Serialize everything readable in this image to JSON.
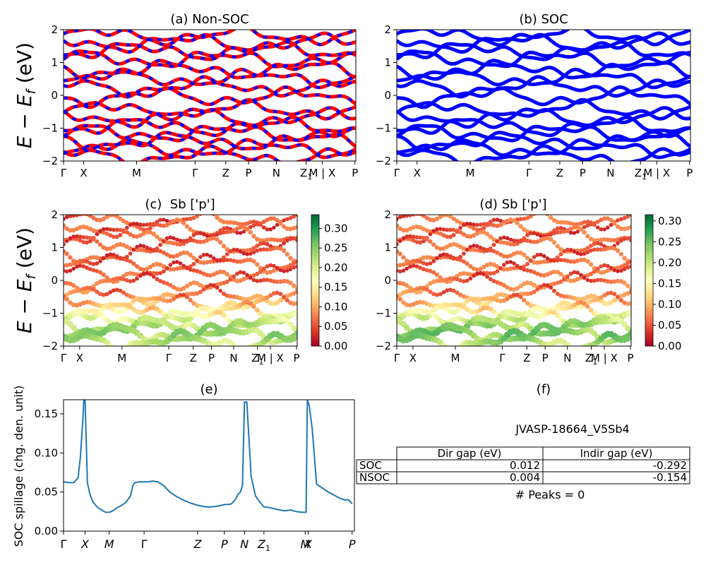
{
  "figure": {
    "ylabel_band": "E − E_f (eV)",
    "colors": {
      "nonsoc_primary": "#ff0000",
      "nonsoc_secondary": "#0000ff",
      "soc": "#0000ff",
      "spillage_line": "#1f77b4"
    },
    "colormap": "RdYlGn"
  },
  "chart_data": [
    {
      "id": "a",
      "type": "line",
      "title": "(a) Non-SOC",
      "ylabel": "E − E_f (eV)",
      "ylim": [
        -2,
        2
      ],
      "yticks": [
        -2,
        -1,
        0,
        1,
        2
      ],
      "kpath": [
        "Γ",
        "X",
        "M",
        "Γ",
        "Z",
        "P",
        "N",
        "Z1",
        "M | X",
        "P"
      ],
      "kpos": [
        0,
        0.069,
        0.25,
        0.45,
        0.555,
        0.633,
        0.728,
        0.83,
        0.885,
        0.997
      ],
      "bands": [
        1.82,
        1.6,
        1.35,
        1.1,
        0.78,
        0.52,
        0.25,
        -0.05,
        -0.45,
        -0.68,
        -0.95,
        -1.15,
        -1.4,
        -1.62,
        -1.85
      ],
      "series": [
        {
          "color": "#ff0000"
        },
        {
          "color": "#0000ff"
        }
      ]
    },
    {
      "id": "b",
      "type": "line",
      "title": "(b) SOC",
      "ylim": [
        -2,
        2
      ],
      "yticks": [
        -2,
        -1,
        0,
        1,
        2
      ],
      "kpath": [
        "Γ",
        "X",
        "M",
        "Γ",
        "Z",
        "P",
        "N",
        "Z1",
        "M | X",
        "P"
      ],
      "kpos": [
        0,
        0.069,
        0.25,
        0.45,
        0.555,
        0.633,
        0.728,
        0.83,
        0.885,
        0.997
      ],
      "bands": [
        1.82,
        1.6,
        1.35,
        1.1,
        0.78,
        0.52,
        0.25,
        -0.05,
        -0.45,
        -0.68,
        -0.95,
        -1.15,
        -1.4,
        -1.62,
        -1.85
      ],
      "series": [
        {
          "color": "#0000ff"
        }
      ]
    },
    {
      "id": "c",
      "type": "scatter",
      "title": "(c)  Sb ['p']",
      "ylabel": "E − E_f (eV)",
      "ylim": [
        -2,
        2
      ],
      "yticks": [
        -2,
        -1,
        0,
        1,
        2
      ],
      "kpath": [
        "Γ",
        "X",
        "M",
        "Γ",
        "Z",
        "P",
        "N",
        "Z1",
        "M | X",
        "P"
      ],
      "kpos": [
        0,
        0.069,
        0.25,
        0.45,
        0.555,
        0.633,
        0.728,
        0.83,
        0.885,
        0.997
      ],
      "colorbar": {
        "range": [
          0,
          0.335
        ],
        "ticks": [
          "0.00",
          "0.05",
          "0.10",
          "0.15",
          "0.20",
          "0.25",
          "0.30"
        ],
        "tickvals": [
          0,
          0.05,
          0.1,
          0.15,
          0.2,
          0.25,
          0.3
        ]
      },
      "bands": [
        1.82,
        1.6,
        1.35,
        1.1,
        0.78,
        0.52,
        0.25,
        -0.05,
        -0.45,
        -0.68,
        -0.95,
        -1.15,
        -1.4,
        -1.62,
        -1.85
      ]
    },
    {
      "id": "d",
      "type": "scatter",
      "title": "(d) Sb ['p']",
      "ylim": [
        -2,
        2
      ],
      "yticks": [
        -2,
        -1,
        0,
        1,
        2
      ],
      "kpath": [
        "Γ",
        "X",
        "M",
        "Γ",
        "Z",
        "P",
        "N",
        "Z1",
        "M | X",
        "P"
      ],
      "kpos": [
        0,
        0.069,
        0.25,
        0.45,
        0.555,
        0.633,
        0.728,
        0.83,
        0.885,
        0.997
      ],
      "colorbar": {
        "range": [
          0,
          0.315
        ],
        "ticks": [
          "0.00",
          "0.05",
          "0.10",
          "0.15",
          "0.20",
          "0.25",
          "0.30"
        ],
        "tickvals": [
          0,
          0.05,
          0.1,
          0.15,
          0.2,
          0.25,
          0.3
        ]
      },
      "bands": [
        1.82,
        1.6,
        1.35,
        1.1,
        0.78,
        0.52,
        0.25,
        -0.05,
        -0.45,
        -0.68,
        -0.95,
        -1.15,
        -1.4,
        -1.62,
        -1.85
      ]
    },
    {
      "id": "e",
      "type": "line",
      "title": "(e)",
      "ylabel": "SOC spillage (chg. den. unit)",
      "ylim": [
        0,
        0.168
      ],
      "yticks": [
        "0.00",
        "0.05",
        "0.10",
        "0.15"
      ],
      "ytickvals": [
        0,
        0.05,
        0.1,
        0.15
      ],
      "xticks": [
        "Γ",
        "X",
        "M",
        "Γ",
        "Z",
        "P",
        "N",
        "Z1",
        "M",
        "X",
        "P"
      ],
      "xtickpos": [
        0,
        0.074,
        0.157,
        0.277,
        0.461,
        0.553,
        0.622,
        0.689,
        0.831,
        0.841,
        0.992
      ],
      "x": [
        0,
        0.018,
        0.035,
        0.05,
        0.058,
        0.066,
        0.07,
        0.074,
        0.082,
        0.09,
        0.1,
        0.115,
        0.13,
        0.145,
        0.157,
        0.17,
        0.185,
        0.2,
        0.215,
        0.23,
        0.238,
        0.245,
        0.26,
        0.277,
        0.29,
        0.305,
        0.325,
        0.345,
        0.365,
        0.385,
        0.41,
        0.435,
        0.461,
        0.49,
        0.51,
        0.53,
        0.553,
        0.565,
        0.578,
        0.59,
        0.6,
        0.608,
        0.615,
        0.622,
        0.63,
        0.645,
        0.66,
        0.675,
        0.689,
        0.71,
        0.73,
        0.745,
        0.76,
        0.78,
        0.8,
        0.82,
        0.831,
        0.834,
        0.838,
        0.845,
        0.855,
        0.87,
        0.89,
        0.91,
        0.93,
        0.95,
        0.965,
        0.98,
        0.992
      ],
      "series": [
        {
          "values": [
            0.063,
            0.062,
            0.062,
            0.068,
            0.095,
            0.14,
            0.168,
            0.168,
            0.062,
            0.048,
            0.038,
            0.031,
            0.027,
            0.024,
            0.024,
            0.026,
            0.03,
            0.033,
            0.037,
            0.045,
            0.058,
            0.062,
            0.063,
            0.063,
            0.063,
            0.064,
            0.063,
            0.058,
            0.05,
            0.045,
            0.04,
            0.036,
            0.033,
            0.031,
            0.031,
            0.032,
            0.034,
            0.034,
            0.035,
            0.04,
            0.047,
            0.05,
            0.058,
            0.165,
            0.165,
            0.07,
            0.045,
            0.037,
            0.031,
            0.03,
            0.028,
            0.027,
            0.026,
            0.027,
            0.025,
            0.024,
            0.024,
            0.024,
            0.168,
            0.16,
            0.13,
            0.06,
            0.055,
            0.05,
            0.046,
            0.042,
            0.04,
            0.04,
            0.035
          ]
        }
      ]
    }
  ],
  "panel_f": {
    "title": "(f)",
    "material": "JVASP-18664_V5Sb4",
    "headers": [
      "",
      "Dir gap (eV)",
      "Indir gap (eV)"
    ],
    "rows": [
      [
        "SOC",
        "0.012",
        "-0.292"
      ],
      [
        "NSOC",
        "0.004",
        "-0.154"
      ]
    ],
    "peaks": "# Peaks = 0"
  }
}
